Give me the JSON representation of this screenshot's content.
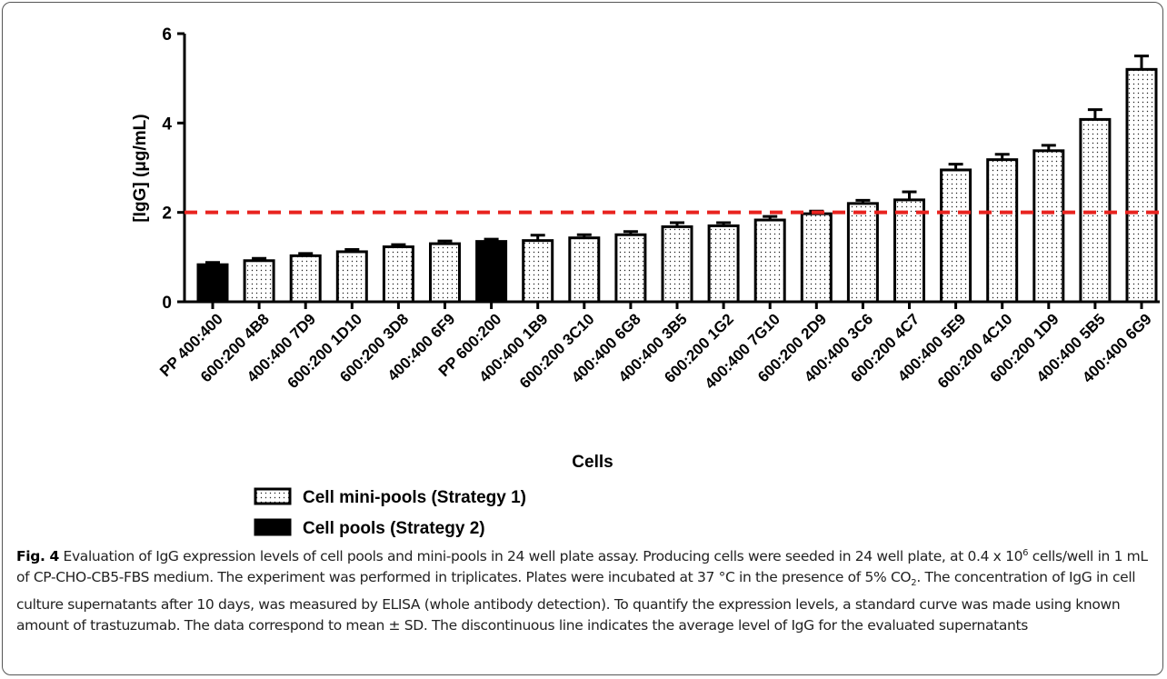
{
  "chart_data": {
    "type": "bar",
    "y_label": "[IgG] (μg/mL)",
    "x_label": "Cells",
    "categories": [
      "PP 400:400",
      "600:200 4B8",
      "400:400 7D9",
      "600:200 1D10",
      "600:200 3D8",
      "400:400 6F9",
      "PP 600:200",
      "400:400 1B9",
      "600:200 3C10",
      "400:400 6G8",
      "400:400 3B5",
      "600:200 1G2",
      "400:400 7G10",
      "600:200 2D9",
      "400:400 3C6",
      "600:200 4C7",
      "400:400 5E9",
      "600:200 4C10",
      "600:200 1D9",
      "400:400 5B5",
      "400:400 6G9"
    ],
    "series": [
      {
        "name": "Cell mini-pools (Strategy 1)",
        "color": "dotted",
        "values": [
          null,
          0.92,
          1.03,
          1.12,
          1.23,
          1.3,
          null,
          1.37,
          1.43,
          1.5,
          1.68,
          1.7,
          1.83,
          1.97,
          2.2,
          2.28,
          2.95,
          3.18,
          3.38,
          4.08,
          5.2
        ],
        "errors": [
          null,
          0.05,
          0.05,
          0.05,
          0.05,
          0.06,
          null,
          0.12,
          0.07,
          0.07,
          0.09,
          0.07,
          0.08,
          0.06,
          0.07,
          0.18,
          0.13,
          0.12,
          0.12,
          0.22,
          0.3
        ]
      },
      {
        "name": "Cell pools (Strategy 2)",
        "color": "#000000",
        "values": [
          0.83,
          null,
          null,
          null,
          null,
          null,
          1.35,
          null,
          null,
          null,
          null,
          null,
          null,
          null,
          null,
          null,
          null,
          null,
          null,
          null,
          null
        ],
        "errors": [
          0.05,
          null,
          null,
          null,
          null,
          null,
          0.05,
          null,
          null,
          null,
          null,
          null,
          null,
          null,
          null,
          null,
          null,
          null,
          null,
          null,
          null
        ]
      }
    ],
    "ylim": [
      0,
      6
    ],
    "yticks": [
      0,
      2,
      4,
      6
    ],
    "reference_line": {
      "value": 2,
      "color": "#e8231f",
      "dashed": true
    }
  },
  "caption": {
    "label": "Fig. 4",
    "parts": [
      " Evaluation of IgG expression levels of cell pools and mini-pools in 24 well plate assay. Producing cells were seeded in 24 well plate, at 0.4 x 10",
      "6",
      " cells/well in 1 mL of CP-CHO-CB5-FBS medium. The experiment was performed in triplicates. Plates were incubated at 37 °C in the presence of 5% CO",
      "2",
      ". The concentration of IgG in cell culture supernatants after 10 days, was measured by ELISA (whole antibody detection). To quantify the expression levels, a standard curve was made using known amount of trastuzumab. The data correspond to mean ± SD. The discontinuous line indicates the average level of IgG for the evaluated supernatants"
    ]
  }
}
